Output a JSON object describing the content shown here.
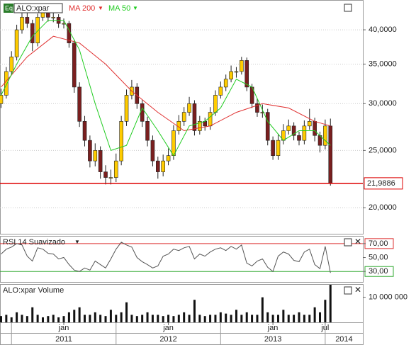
{
  "chart_data": [
    {
      "type": "candlestick",
      "title": "ALO:xpar",
      "log": true,
      "grid": true,
      "up_color": "#ffcc00",
      "down_color": "#7a1f1f",
      "x": [
        2010.4,
        2010.45,
        2010.5,
        2010.55,
        2010.6,
        2010.65,
        2010.7,
        2010.75,
        2010.8,
        2010.85,
        2010.9,
        2010.95,
        2011,
        2011.05,
        2011.1,
        2011.15,
        2011.2,
        2011.25,
        2011.3,
        2011.35,
        2011.4,
        2011.45,
        2011.5,
        2011.55,
        2011.6,
        2011.65,
        2011.7,
        2011.75,
        2011.8,
        2011.85,
        2011.9,
        2011.95,
        2012,
        2012.05,
        2012.1,
        2012.15,
        2012.2,
        2012.25,
        2012.3,
        2012.35,
        2012.4,
        2012.45,
        2012.5,
        2012.55,
        2012.6,
        2012.65,
        2012.7,
        2012.75,
        2012.8,
        2012.85,
        2012.9,
        2012.95,
        2013,
        2013.05,
        2013.1,
        2013.15,
        2013.2,
        2013.25,
        2013.3,
        2013.35,
        2013.4,
        2013.45,
        2013.5,
        2013.55
      ],
      "open": [
        30,
        31,
        34,
        36,
        40,
        42,
        41,
        38,
        42,
        43,
        42,
        42,
        41,
        41,
        38,
        32,
        28,
        26,
        24,
        25,
        23,
        22.5,
        22.5,
        24,
        28,
        31,
        32,
        30,
        28,
        26,
        24,
        23,
        24,
        24.5,
        27,
        28,
        29,
        30,
        27,
        28,
        27.5,
        29,
        31,
        32,
        33,
        34,
        34,
        35.5,
        32,
        30,
        29,
        29,
        26,
        24.5,
        26,
        27,
        27.5,
        26.5,
        26,
        27.5,
        28,
        26.5,
        25.5,
        27.5
      ],
      "high": [
        31.8,
        34.6,
        36.8,
        40.8,
        43,
        42.8,
        41.6,
        42.6,
        43.8,
        43.6,
        42.9,
        42.5,
        41.8,
        41.4,
        38.5,
        32.6,
        28.6,
        26.5,
        25.7,
        25.4,
        23.6,
        23.2,
        24.7,
        28.6,
        31.7,
        32.9,
        32.5,
        30.4,
        28.5,
        26.5,
        24.4,
        24.6,
        25.2,
        27.6,
        28.7,
        29.6,
        30.8,
        30.4,
        28.6,
        28.4,
        29.6,
        31.6,
        32.7,
        33.6,
        34.8,
        34.6,
        36,
        35.9,
        32.4,
        30.6,
        29.9,
        29.4,
        26.4,
        26.6,
        27.7,
        28.2,
        27.9,
        26.9,
        28.1,
        29.4,
        28.4,
        26.9,
        28.2,
        28.3
      ],
      "low": [
        29.5,
        30.6,
        33.5,
        35.5,
        39.4,
        40.3,
        36.8,
        37.5,
        41.4,
        41.3,
        41.2,
        40.3,
        40.2,
        37.3,
        31.3,
        27.4,
        25.4,
        23.4,
        23.5,
        22.4,
        21.9,
        21.9,
        22.1,
        23.6,
        27.5,
        30.5,
        29.4,
        27.4,
        25.4,
        23.5,
        22.4,
        22.6,
        23.6,
        24.1,
        26.6,
        27.5,
        28.6,
        26.5,
        26.6,
        27,
        27.1,
        28.6,
        30.6,
        31.5,
        32.6,
        33.2,
        33.6,
        31.5,
        29.5,
        28.5,
        28.4,
        25.5,
        24.1,
        24.1,
        25.6,
        26.6,
        26,
        25.5,
        25.6,
        27.1,
        25.9,
        24.8,
        25.1,
        21.8
      ],
      "close": [
        31,
        34,
        36,
        40,
        42,
        41,
        38,
        42,
        43,
        42,
        42,
        41,
        41,
        38,
        32,
        28,
        26,
        24,
        25,
        23,
        22.5,
        22.5,
        24,
        28,
        31,
        32,
        30,
        28,
        26,
        24,
        23,
        24,
        24.5,
        27,
        28,
        29,
        30,
        27,
        28,
        27.5,
        29,
        31,
        32,
        33,
        34,
        34,
        35.5,
        32,
        30,
        29,
        29,
        26,
        24.5,
        26,
        27,
        27.5,
        26.5,
        26,
        27.5,
        28,
        26.5,
        25.5,
        27.5,
        21.99
      ],
      "series": [
        {
          "name": "MA 200",
          "color": "#e03030",
          "x": [
            2010.4,
            2010.65,
            2010.9,
            2011.15,
            2011.4,
            2011.65,
            2011.9,
            2012.15,
            2012.4,
            2012.65,
            2012.9,
            2013.15,
            2013.4,
            2013.55
          ],
          "values": [
            32,
            36,
            39,
            38,
            35,
            31.5,
            29,
            27,
            27.5,
            29,
            30,
            29.5,
            28,
            27.5
          ]
        },
        {
          "name": "MA 50",
          "color": "#22cc22",
          "x": [
            2010.4,
            2010.55,
            2010.7,
            2010.85,
            2011,
            2011.15,
            2011.3,
            2011.45,
            2011.6,
            2011.75,
            2011.9,
            2012.05,
            2012.2,
            2012.35,
            2012.5,
            2012.65,
            2012.8,
            2012.95,
            2013.1,
            2013.25,
            2013.4,
            2013.55
          ],
          "values": [
            31,
            35,
            39,
            41.5,
            41.5,
            37,
            30,
            25,
            25.5,
            29.5,
            27,
            24.5,
            27.5,
            28,
            29.5,
            33,
            32,
            28,
            26,
            27,
            27,
            25.5
          ]
        }
      ],
      "last_price": 21.9886,
      "last_price_label": "21,9886",
      "last_price_color": "#dd0000",
      "xlim": [
        2010.39,
        2013.86
      ],
      "ylim": [
        18.07,
        44.8
      ],
      "yticks": [
        {
          "value": 20,
          "label": "20,0000"
        },
        {
          "value": 25,
          "label": "25,0000"
        },
        {
          "value": 30,
          "label": "30,0000"
        },
        {
          "value": 35,
          "label": "35,0000"
        },
        {
          "value": 40,
          "label": "40,0000"
        }
      ]
    },
    {
      "type": "line",
      "title": "RSI 14 Suavizado",
      "color": "#555555",
      "values": [
        55,
        62,
        65,
        70,
        68,
        52,
        45,
        64,
        62,
        56,
        55,
        48,
        50,
        40,
        32,
        30,
        35,
        32,
        45,
        40,
        35,
        48,
        62,
        72,
        68,
        65,
        50,
        44,
        40,
        35,
        38,
        52,
        55,
        62,
        60,
        64,
        66,
        48,
        55,
        52,
        58,
        62,
        64,
        60,
        66,
        62,
        68,
        42,
        38,
        45,
        48,
        36,
        30,
        52,
        58,
        55,
        46,
        44,
        58,
        62,
        40,
        34,
        66,
        28
      ],
      "xlim": [
        2010.39,
        2013.86
      ],
      "ylim": [
        15,
        80
      ],
      "yticks": [
        {
          "value": 30,
          "label": "30,00"
        },
        {
          "value": 50,
          "label": "50,00"
        },
        {
          "value": 70,
          "label": "70,00"
        }
      ],
      "upper": 70,
      "upper_color": "#dd3333",
      "lower": 30,
      "lower_color": "#33aa33"
    },
    {
      "type": "bar",
      "title": "ALO:xpar Volume",
      "color": "#111111",
      "values": [
        2500000,
        3000000,
        2000000,
        4000000,
        3000000,
        2500000,
        6000000,
        3000000,
        2000000,
        2500000,
        3000000,
        2000000,
        2500000,
        4000000,
        5000000,
        6000000,
        3000000,
        3000000,
        4000000,
        3000000,
        2500000,
        5000000,
        3000000,
        4000000,
        8000000,
        3000000,
        2500000,
        3000000,
        4000000,
        3000000,
        3000000,
        2500000,
        3000000,
        2500000,
        3000000,
        4000000,
        3000000,
        9000000,
        3000000,
        2500000,
        3000000,
        3000000,
        4000000,
        3500000,
        3000000,
        5000000,
        3000000,
        4000000,
        3000000,
        3000000,
        10000000,
        4000000,
        3000000,
        3000000,
        5000000,
        3000000,
        3000000,
        4000000,
        3000000,
        3000000,
        6000000,
        4000000,
        9000000,
        15000000
      ],
      "xlim": [
        2010.39,
        2013.86
      ],
      "ylim": [
        0,
        15000000
      ],
      "yticks": [
        {
          "value": 10000000,
          "label": "10 000 000"
        }
      ],
      "xticks": [
        {
          "value": 2011,
          "label": "jan"
        },
        {
          "value": 2012,
          "label": "jan"
        },
        {
          "value": 2013,
          "label": "jan"
        },
        {
          "value": 2013.5,
          "label": "jul"
        }
      ],
      "year_labels": [
        {
          "value": 2011,
          "label": "2011"
        },
        {
          "value": 2012,
          "label": "2012"
        },
        {
          "value": 2013,
          "label": "2013"
        },
        {
          "value": 2014,
          "label": "2014"
        }
      ]
    }
  ]
}
